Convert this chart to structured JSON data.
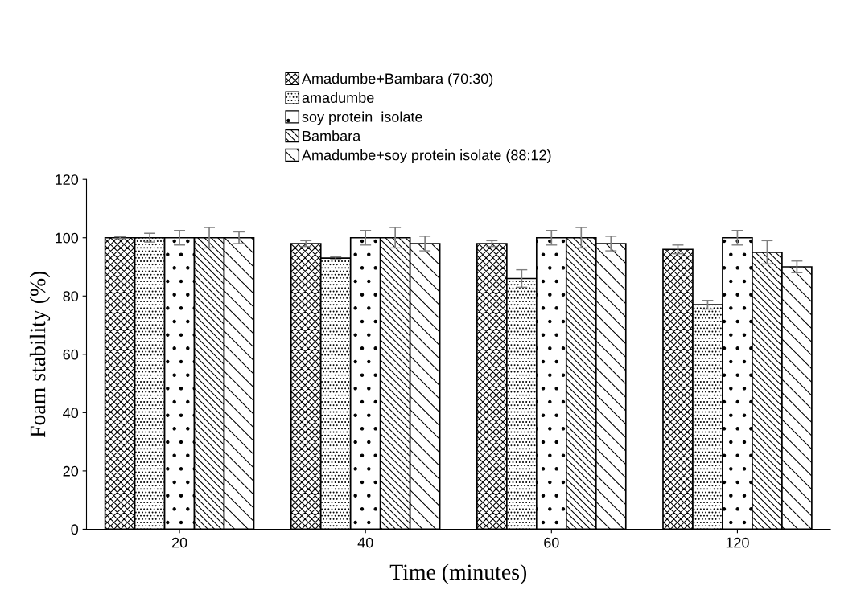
{
  "chart_data": {
    "type": "bar",
    "xlabel": "Time (minutes)",
    "ylabel": "Foam stability (%)",
    "categories": [
      "20",
      "40",
      "60",
      "120"
    ],
    "series": [
      {
        "name": "Amadumbe+Bambara (70:30)",
        "color": "#000000",
        "values": [
          100,
          98,
          98,
          96
        ],
        "errors": [
          0.3,
          1,
          1,
          1.5
        ]
      },
      {
        "name": "amadumbe",
        "color": "#000000",
        "values": [
          100,
          93,
          86,
          77
        ],
        "errors": [
          1.5,
          0.5,
          3,
          1.5
        ]
      },
      {
        "name": "soy protein  isolate",
        "color": "#000000",
        "values": [
          100,
          100,
          100,
          100
        ],
        "errors": [
          2.5,
          2.5,
          2.5,
          2.5
        ]
      },
      {
        "name": "Bambara",
        "color": "#000000",
        "values": [
          100,
          100,
          100,
          95
        ],
        "errors": [
          3.5,
          3.5,
          3.5,
          4
        ]
      },
      {
        "name": "Amadumbe+soy protein isolate (88:12)",
        "color": "#000000",
        "values": [
          100,
          98,
          98,
          90
        ],
        "errors": [
          2,
          2.5,
          2.5,
          2
        ]
      }
    ],
    "ylim": [
      0,
      120
    ],
    "yticks": [
      0,
      20,
      40,
      60,
      80,
      100,
      120
    ],
    "grid": false,
    "legend": "top"
  }
}
